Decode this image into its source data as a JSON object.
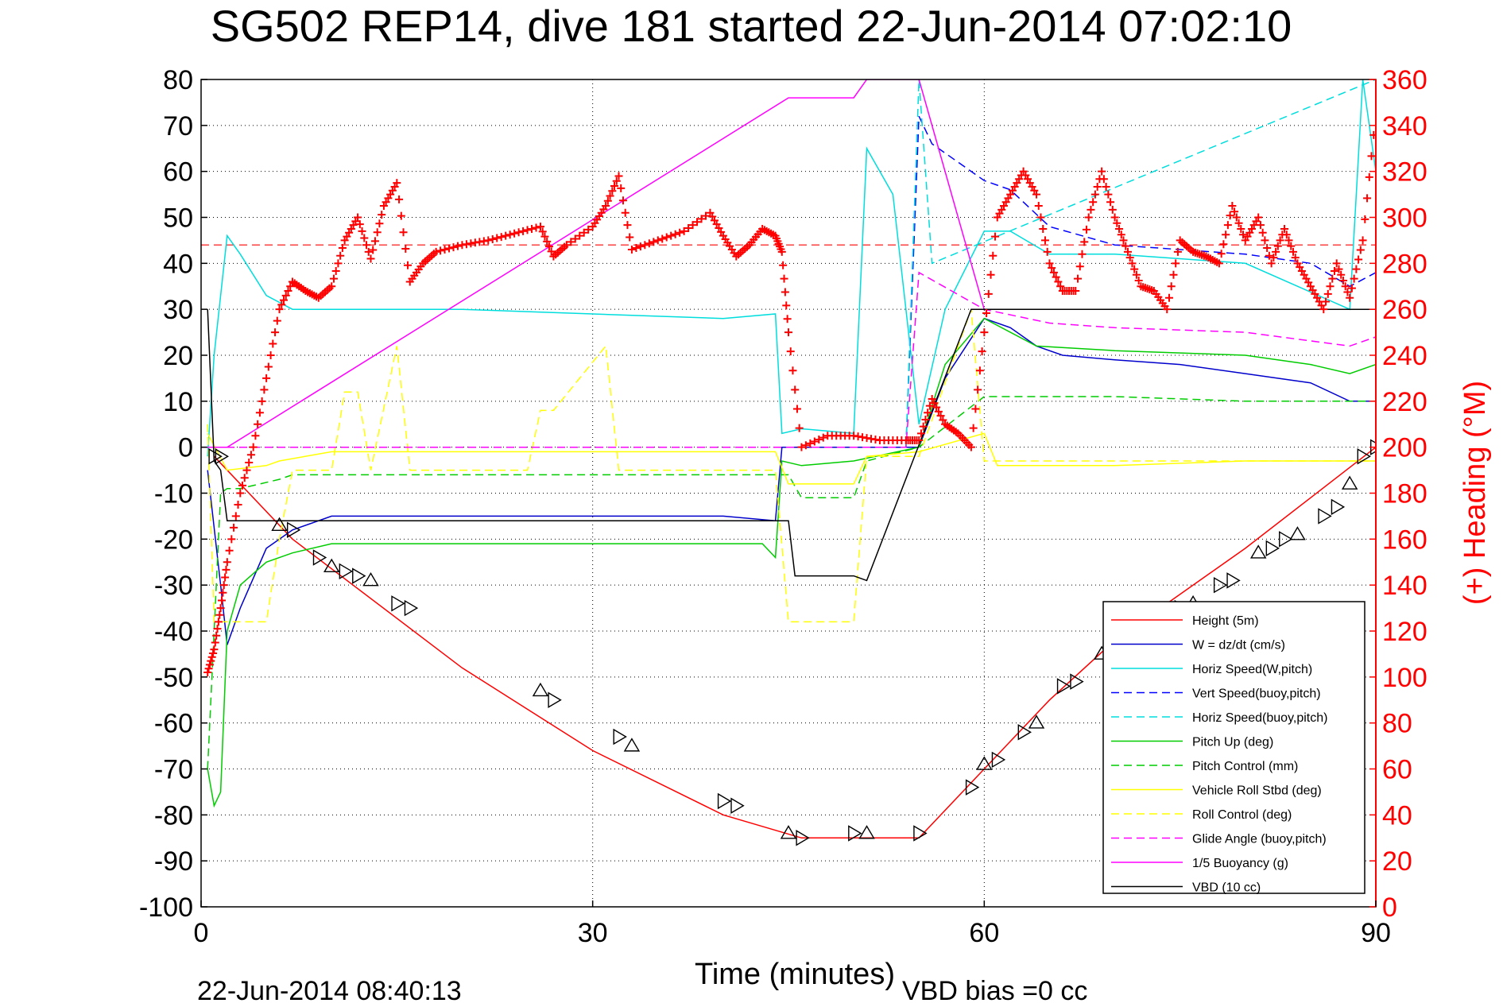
{
  "chart_data": {
    "type": "line",
    "title": "SG502 REP14, dive 181 started 22-Jun-2014 07:02:10",
    "xlabel": "Time (minutes)",
    "ylabel": "",
    "y2label": "(+) Heading (°M)",
    "xlim": [
      0,
      90
    ],
    "ylim": [
      -100,
      80
    ],
    "y2lim": [
      0,
      360
    ],
    "xticks": [
      "0",
      "30",
      "60",
      "90"
    ],
    "yticks": [
      "80",
      "70",
      "60",
      "50",
      "40",
      "30",
      "20",
      "10",
      "0",
      "-10",
      "-20",
      "-30",
      "-40",
      "-50",
      "-60",
      "-70",
      "-80",
      "-90",
      "-100"
    ],
    "y2ticks": [
      "360",
      "340",
      "320",
      "300",
      "280",
      "260",
      "240",
      "220",
      "200",
      "180",
      "160",
      "140",
      "120",
      "100",
      "80",
      "60",
      "40",
      "20",
      "0"
    ],
    "grid": true,
    "legend_position": "lower-right",
    "footer_left": "22-Jun-2014 08:40:13",
    "footer_right": "VBD bias =0 cc",
    "heading_mean": 288,
    "series": [
      {
        "name": "Height (5m)",
        "color": "#ff0000",
        "style": "solid",
        "x": [
          1,
          7,
          20,
          30,
          40,
          46,
          55,
          60,
          65,
          70,
          80,
          90
        ],
        "y": [
          -2,
          -20,
          -48,
          -66,
          -80,
          -85,
          -85,
          -70,
          -55,
          -42,
          -22,
          0
        ]
      },
      {
        "name": "W = dz/dt (cm/s)",
        "color": "#0000cc",
        "style": "solid",
        "x": [
          0.5,
          1.5,
          2,
          3,
          5,
          7,
          10,
          15,
          20,
          30,
          40,
          44,
          44.5,
          46,
          50,
          55,
          57,
          60,
          62,
          64,
          66,
          70,
          75,
          80,
          85,
          88,
          90
        ],
        "y": [
          -5,
          -30,
          -43,
          -35,
          -22,
          -18,
          -15,
          -15,
          -15,
          -15,
          -15,
          -16,
          0,
          0,
          0,
          0,
          15,
          28,
          26,
          22,
          20,
          19,
          18,
          16,
          14,
          10,
          10
        ]
      },
      {
        "name": "Horiz Speed(W,pitch)",
        "color": "#00dddd",
        "style": "solid",
        "x": [
          0.5,
          1,
          2,
          3,
          5,
          7,
          10,
          20,
          30,
          40,
          44,
          44.5,
          46,
          50,
          51,
          53,
          55,
          57,
          60,
          62,
          65,
          70,
          80,
          88,
          89,
          90
        ],
        "y": [
          -2,
          20,
          46,
          42,
          33,
          30,
          30,
          30,
          29,
          28,
          29,
          3,
          4,
          3,
          65,
          55,
          5,
          30,
          47,
          47,
          42,
          42,
          40,
          30,
          80,
          60
        ]
      },
      {
        "name": "Vert Speed(buoy,pitch)",
        "color": "#0000ff",
        "style": "dashed",
        "x": [
          54,
          55,
          56,
          60,
          62,
          65,
          70,
          80,
          85,
          88,
          90
        ],
        "y": [
          0,
          72,
          66,
          58,
          56,
          48,
          44,
          42,
          40,
          35,
          38
        ]
      },
      {
        "name": "Horiz Speed(buoy,pitch)",
        "color": "#00dddd",
        "style": "dashed",
        "x": [
          54,
          55,
          56,
          90
        ],
        "y": [
          0,
          80,
          40,
          80
        ]
      },
      {
        "name": "Pitch Up (deg)",
        "color": "#00cc00",
        "style": "solid",
        "x": [
          0.5,
          1,
          1.5,
          2,
          3,
          5,
          7,
          10,
          20,
          30,
          40,
          43,
          44,
          44.5,
          46,
          50,
          55,
          57,
          60,
          62,
          64,
          70,
          80,
          85,
          88,
          90
        ],
        "y": [
          -70,
          -78,
          -75,
          -40,
          -30,
          -25,
          -23,
          -21,
          -21,
          -21,
          -21,
          -21,
          -24,
          -3,
          -4,
          -3,
          0,
          18,
          28,
          25,
          22,
          21,
          20,
          18,
          16,
          18
        ]
      },
      {
        "name": "Pitch Control (mm)",
        "color": "#00cc00",
        "style": "dashed",
        "x": [
          0.5,
          1.5,
          2,
          3,
          6,
          7,
          10,
          20,
          30,
          40,
          44,
          45,
          46,
          50,
          51,
          55,
          60,
          70,
          80,
          90
        ],
        "y": [
          -70,
          -10,
          -9,
          -9,
          -7,
          -6,
          -6,
          -6,
          -6,
          -6,
          -6,
          -6,
          -11,
          -11,
          -3,
          0,
          11,
          11,
          10,
          10
        ]
      },
      {
        "name": "Vehicle Roll Stbd (deg)",
        "color": "#ffff00",
        "style": "solid",
        "x": [
          0.5,
          2,
          5,
          6,
          10,
          20,
          30,
          40,
          44,
          45,
          50,
          51,
          55,
          60,
          61,
          70,
          80,
          90
        ],
        "y": [
          3,
          -5,
          -4,
          -3,
          -1,
          -1,
          -1,
          -1,
          -1,
          -8,
          -8,
          -2,
          -1,
          3,
          -4,
          -4,
          -3,
          -3
        ]
      },
      {
        "name": "Roll Control (deg)",
        "color": "#ffff00",
        "style": "dashed",
        "x": [
          0.5,
          1,
          2,
          5,
          6,
          7,
          10,
          11,
          12,
          13,
          15,
          16,
          20,
          25,
          26,
          27,
          31,
          32,
          40,
          44,
          45,
          50,
          51,
          55,
          58,
          59,
          60,
          61,
          63,
          65,
          70,
          80,
          90
        ],
        "y": [
          5,
          -38,
          -38,
          -38,
          -20,
          -5,
          -5,
          12,
          12,
          -5,
          22,
          -5,
          -5,
          -5,
          8,
          8,
          22,
          -5,
          -5,
          -5,
          -38,
          -38,
          -2,
          -2,
          22,
          30,
          -3,
          -3,
          -3,
          -3,
          -3,
          -3,
          -3
        ]
      },
      {
        "name": "Glide Angle (buoy,pitch)",
        "color": "#ff00ff",
        "style": "dashed",
        "x": [
          0,
          54,
          55,
          60,
          65,
          70,
          80,
          88,
          90
        ],
        "y": [
          0,
          0,
          38,
          30,
          27,
          26,
          25,
          22,
          24
        ]
      },
      {
        "name": "1/5 Buoyancy (g)",
        "color": "#ff00ff",
        "style": "solid",
        "x": [
          0,
          2,
          45,
          50,
          51,
          55,
          60,
          90
        ],
        "y": [
          0,
          0,
          76,
          76,
          80,
          80,
          30,
          30
        ]
      },
      {
        "name": "VBD (10 cc)",
        "color": "#000000",
        "style": "solid",
        "x": [
          0.5,
          1,
          1.5,
          2,
          45,
          45.5,
          50,
          51,
          59,
          60,
          90
        ],
        "y": [
          30,
          -3,
          -5,
          -16,
          -16,
          -28,
          -28,
          -29,
          30,
          30,
          30
        ]
      }
    ],
    "heading": {
      "name": "(+) Heading (°M)",
      "color": "#ff0000",
      "x": [
        0.5,
        1,
        1.5,
        2,
        3,
        4,
        5,
        6,
        7,
        8,
        9,
        10,
        11,
        12,
        13,
        14,
        15,
        16,
        17,
        18,
        20,
        22,
        24,
        26,
        27,
        28,
        30,
        31,
        32,
        33,
        35,
        37,
        39,
        40,
        41,
        42,
        43,
        44,
        44.5,
        45,
        46,
        48,
        50,
        52,
        54,
        55,
        56,
        57,
        58,
        59,
        60,
        61,
        62,
        63,
        64,
        65,
        66,
        67,
        68,
        69,
        70,
        71,
        72,
        73,
        74,
        75,
        76,
        77,
        78,
        79,
        80,
        81,
        82,
        83,
        84,
        85,
        86,
        87,
        88,
        89,
        90
      ],
      "y": [
        102,
        112,
        130,
        150,
        180,
        200,
        230,
        260,
        272,
        268,
        265,
        270,
        290,
        300,
        282,
        305,
        315,
        272,
        280,
        285,
        288,
        290,
        293,
        296,
        283,
        288,
        296,
        305,
        318,
        286,
        290,
        294,
        302,
        292,
        283,
        288,
        295,
        292,
        285,
        250,
        200,
        205,
        205,
        203,
        203,
        203,
        221,
        210,
        206,
        200,
        250,
        300,
        310,
        320,
        310,
        280,
        268,
        268,
        300,
        320,
        300,
        285,
        270,
        268,
        260,
        290,
        285,
        283,
        280,
        305,
        290,
        300,
        280,
        295,
        280,
        270,
        260,
        280,
        265,
        290,
        345
      ]
    },
    "markers": {
      "x": [
        1,
        1.5,
        6,
        7,
        9,
        10,
        11,
        12,
        13,
        15,
        16,
        26,
        27,
        32,
        33,
        40,
        41,
        45,
        46,
        50,
        51,
        55,
        59,
        60,
        61,
        63,
        64,
        66,
        67,
        69,
        70,
        75,
        76,
        78,
        79,
        81,
        82,
        83,
        84,
        86,
        87,
        88,
        89,
        90
      ],
      "y": [
        -2,
        -2,
        -17,
        -18,
        -24,
        -26,
        -27,
        -28,
        -29,
        -34,
        -35,
        -53,
        -55,
        -63,
        -65,
        -77,
        -78,
        -84,
        -85,
        -84,
        -84,
        -84,
        -74,
        -69,
        -68,
        -62,
        -60,
        -52,
        -51,
        -45,
        -43,
        -35,
        -34,
        -30,
        -29,
        -23,
        -22,
        -20,
        -19,
        -15,
        -13,
        -8,
        -2,
        0
      ]
    }
  }
}
